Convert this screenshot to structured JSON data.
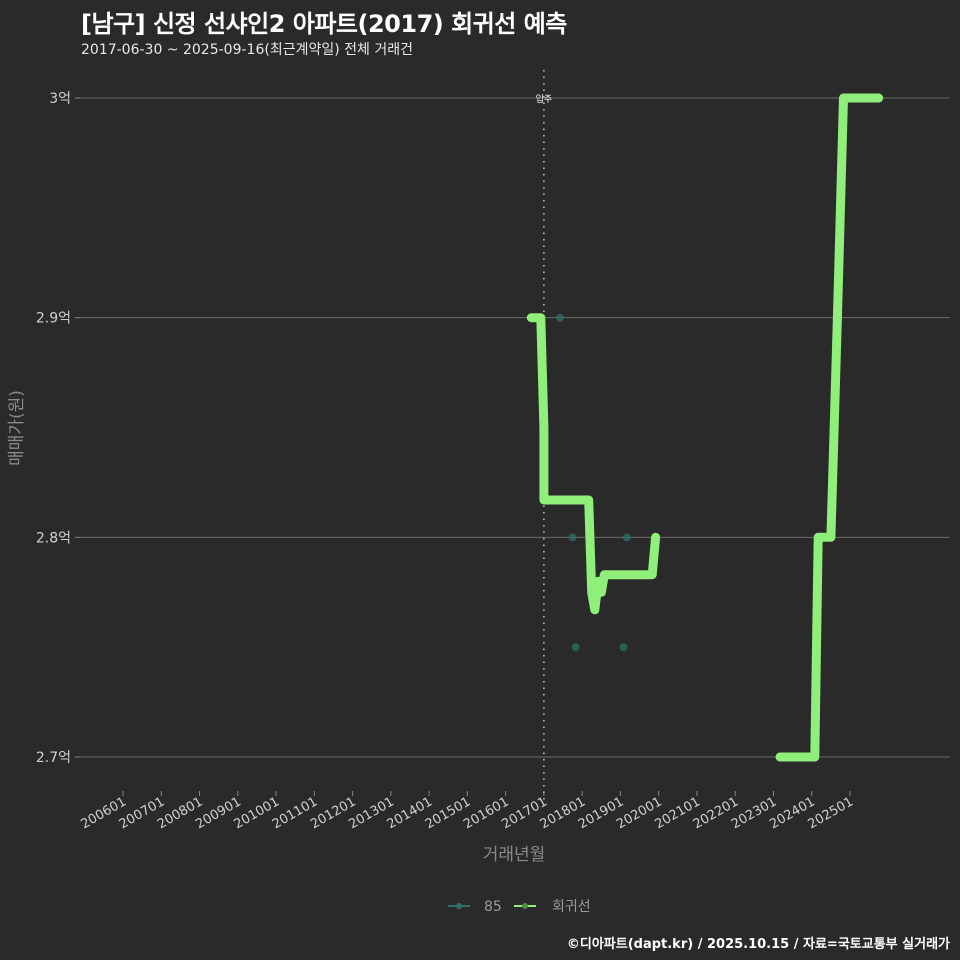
{
  "header": {
    "title": "[남구] 신정 선샤인2 아파트(2017) 회귀선 예측",
    "subtitle": "2017-06-30 ~ 2025-09-16(최근계약일) 전체 거래건"
  },
  "caption": "©디아파트(dapt.kr) / 2025.10.15 / 자료=국토교통부 실거래가",
  "colors": {
    "background": "#2b2a2b",
    "regression": "#90ee7a",
    "series_85": "#2f6f6a",
    "gridline": "#6a6a6a",
    "vline": "#bbbbbb"
  },
  "chart_data": {
    "type": "line",
    "title": "[남구] 신정 선샤인2 아파트(2017) 회귀선 예측",
    "subtitle": "2017-06-30 ~ 2025-09-16(최근계약일) 전체 거래건",
    "xlabel": "거래년월",
    "ylabel": "매매가(원)",
    "x_ticks": [
      "200601",
      "200701",
      "200801",
      "200901",
      "201001",
      "201101",
      "201201",
      "201301",
      "201401",
      "201501",
      "201601",
      "201701",
      "201801",
      "201901",
      "202001",
      "202101",
      "202201",
      "202301",
      "202401",
      "202501"
    ],
    "y_ticks": [
      {
        "value": 2.7,
        "label": "2.7억"
      },
      {
        "value": 2.8,
        "label": "2.8억"
      },
      {
        "value": 2.9,
        "label": "2.9억"
      },
      {
        "value": 3.0,
        "label": "3억"
      }
    ],
    "ylim": [
      2.685,
      3.013
    ],
    "xlim": [
      2005.0,
      2027.65
    ],
    "grid": true,
    "legend_position": "bottom",
    "annotations": [
      {
        "x": 2017.0,
        "label": "입주",
        "style": "dotted vertical line"
      }
    ],
    "series": [
      {
        "name": "85",
        "type": "scatter",
        "points": [
          {
            "x": 2017.42,
            "y": 2.9
          },
          {
            "x": 2017.75,
            "y": 2.8
          },
          {
            "x": 2017.83,
            "y": 2.75
          },
          {
            "x": 2019.08,
            "y": 2.75
          },
          {
            "x": 2019.17,
            "y": 2.8
          }
        ]
      },
      {
        "name": "회귀선",
        "type": "line",
        "points": [
          {
            "x": 2016.67,
            "y": 2.9
          },
          {
            "x": 2016.92,
            "y": 2.9
          },
          {
            "x": 2017.0,
            "y": 2.85
          },
          {
            "x": 2017.0,
            "y": 2.817
          },
          {
            "x": 2018.17,
            "y": 2.817
          },
          {
            "x": 2018.25,
            "y": 2.775
          },
          {
            "x": 2018.33,
            "y": 2.767
          },
          {
            "x": 2018.42,
            "y": 2.78
          },
          {
            "x": 2018.5,
            "y": 2.775
          },
          {
            "x": 2018.58,
            "y": 2.783
          },
          {
            "x": 2019.83,
            "y": 2.783
          },
          {
            "x": 2019.92,
            "y": 2.8
          },
          {
            "x": 2023.17,
            "y": 2.7
          },
          {
            "x": 2024.08,
            "y": 2.7
          },
          {
            "x": 2024.17,
            "y": 2.8
          },
          {
            "x": 2024.5,
            "y": 2.8
          },
          {
            "x": 2024.67,
            "y": 2.9
          },
          {
            "x": 2024.83,
            "y": 3.0
          },
          {
            "x": 2025.75,
            "y": 3.0
          }
        ]
      }
    ]
  },
  "legend": {
    "items": [
      {
        "label": "85",
        "color": "#2f6f6a"
      },
      {
        "label": "회귀선",
        "color": "#90ee7a"
      }
    ]
  }
}
